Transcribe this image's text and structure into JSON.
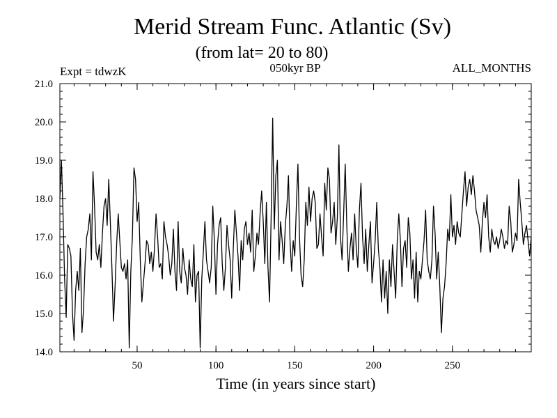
{
  "chart_data": {
    "type": "line",
    "title": "Merid Stream Func. Atlantic (Sv)",
    "subtitle": "(from lat= 20 to 80)",
    "annotations": {
      "left": "Expt = tdwzK",
      "center": "050kyr BP",
      "right": "ALL_MONTHS"
    },
    "xlabel": "Time (in years since start)",
    "ylabel": "",
    "xlim": [
      1,
      300
    ],
    "ylim": [
      14.0,
      21.0
    ],
    "xticks": [
      50,
      100,
      150,
      200,
      250
    ],
    "xtick_labels": [
      "50",
      "100",
      "150",
      "200",
      "250"
    ],
    "yticks": [
      14.0,
      15.0,
      16.0,
      17.0,
      18.0,
      19.0,
      20.0,
      21.0
    ],
    "ytick_labels": [
      "14.0",
      "15.0",
      "16.0",
      "17.0",
      "18.0",
      "19.0",
      "20.0",
      "21.0"
    ],
    "grid": false,
    "series": [
      {
        "values": [
          18.0,
          19.0,
          17.6,
          15.9,
          14.9,
          16.8,
          16.7,
          16.5,
          15.0,
          14.3,
          15.6,
          16.1,
          15.6,
          16.7,
          14.5,
          15.1,
          16.3,
          17.0,
          17.2,
          17.6,
          16.4,
          18.7,
          17.8,
          16.6,
          16.4,
          16.8,
          16.2,
          17.1,
          17.8,
          18.0,
          17.3,
          18.5,
          17.4,
          16.2,
          14.8,
          15.7,
          16.8,
          17.6,
          16.9,
          16.2,
          16.1,
          16.3,
          15.9,
          16.4,
          14.1,
          16.1,
          17.0,
          18.8,
          18.5,
          17.4,
          17.9,
          16.4,
          15.3,
          15.8,
          16.3,
          16.9,
          16.8,
          16.3,
          16.6,
          16.1,
          16.7,
          17.6,
          17.0,
          16.2,
          16.3,
          15.9,
          17.4,
          17.0,
          16.8,
          16.5,
          16.0,
          16.3,
          17.2,
          16.1,
          15.6,
          17.4,
          16.1,
          15.8,
          16.7,
          16.2,
          16.0,
          15.5,
          16.4,
          15.9,
          15.7,
          16.8,
          15.3,
          16.0,
          16.1,
          14.1,
          15.9,
          16.6,
          17.4,
          16.4,
          16.1,
          15.8,
          16.2,
          17.8,
          16.9,
          15.5,
          16.8,
          17.3,
          17.5,
          16.3,
          15.6,
          16.2,
          17.3,
          16.8,
          16.4,
          15.4,
          16.7,
          17.7,
          17.1,
          16.5,
          15.6,
          16.9,
          16.4,
          17.2,
          17.4,
          16.8,
          17.1,
          16.6,
          17.7,
          16.1,
          16.5,
          17.1,
          16.8,
          17.6,
          18.2,
          17.4,
          16.3,
          17.9,
          16.2,
          15.3,
          17.5,
          20.1,
          17.2,
          18.6,
          19.0,
          16.4,
          17.4,
          16.9,
          16.3,
          17.3,
          17.8,
          18.6,
          16.9,
          16.1,
          16.9,
          16.5,
          17.8,
          18.9,
          17.0,
          16.0,
          15.7,
          16.4,
          17.9,
          17.3,
          18.3,
          17.4,
          18.0,
          18.2,
          17.9,
          16.7,
          16.8,
          17.6,
          17.0,
          16.5,
          18.4,
          17.7,
          18.8,
          18.5,
          17.1,
          17.4,
          17.9,
          16.8,
          17.5,
          19.4,
          17.0,
          16.4,
          17.6,
          18.9,
          17.3,
          16.1,
          16.7,
          17.1,
          16.4,
          17.6,
          16.7,
          16.2,
          17.7,
          18.4,
          17.0,
          16.3,
          17.2,
          16.1,
          16.8,
          17.4,
          15.8,
          16.3,
          16.9,
          17.9,
          16.7,
          16.2,
          15.3,
          16.4,
          15.4,
          16.1,
          15.0,
          16.4,
          15.7,
          16.8,
          16.1,
          15.4,
          16.9,
          17.6,
          16.9,
          15.7,
          16.7,
          16.9,
          16.2,
          17.5,
          17.1,
          15.9,
          16.4,
          15.4,
          16.6,
          15.3,
          16.1,
          15.9,
          16.4,
          16.9,
          17.7,
          16.4,
          16.1,
          15.9,
          16.4,
          17.8,
          17.1,
          15.9,
          16.6,
          15.7,
          14.5,
          15.4,
          15.7,
          16.3,
          17.2,
          16.9,
          18.1,
          17.0,
          17.3,
          16.8,
          17.4,
          17.1,
          17.0,
          17.6,
          18.2,
          18.7,
          17.8,
          18.3,
          18.5,
          18.1,
          18.6,
          18.2,
          17.7,
          17.5,
          17.3,
          16.6,
          17.4,
          17.9,
          17.5,
          18.1,
          17.0,
          16.6,
          17.2,
          16.9,
          16.8,
          17.0,
          16.7,
          16.9,
          17.2,
          17.0,
          16.7,
          16.9,
          16.8,
          17.8,
          17.4,
          16.6,
          16.8,
          17.1,
          16.9,
          18.5,
          17.9,
          17.4,
          16.8,
          17.1,
          17.3,
          16.9,
          16.5,
          17.0
        ]
      }
    ]
  }
}
